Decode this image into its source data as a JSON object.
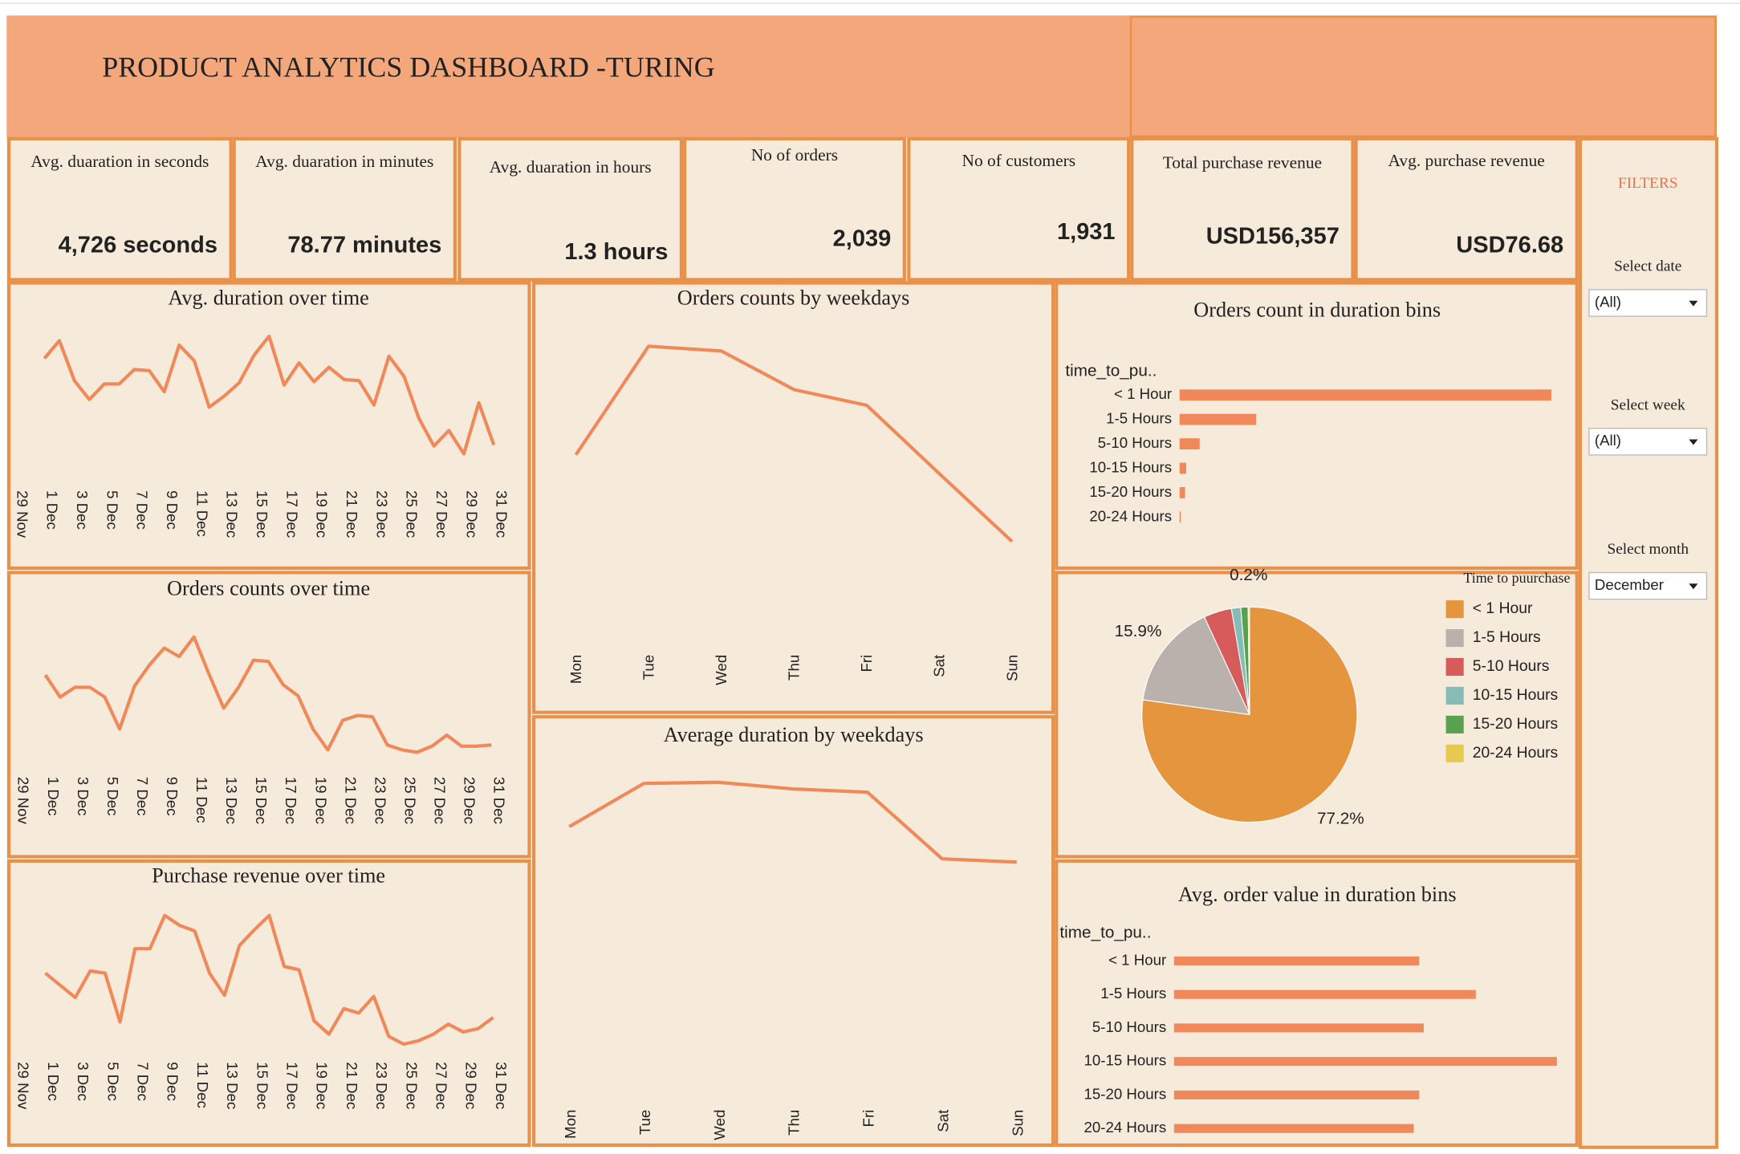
{
  "header": {
    "title": "PRODUCT ANALYTICS DASHBOARD -TURING"
  },
  "kpis": [
    {
      "label": "Avg. duaration in seconds",
      "value": "4,726 seconds"
    },
    {
      "label": "Avg. duaration in minutes",
      "value": "78.77 minutes"
    },
    {
      "label": "Avg. duaration in hours",
      "value": "1.3 hours"
    },
    {
      "label": "No of orders",
      "value": "2,039"
    },
    {
      "label": "No of customers",
      "value": "1,931"
    },
    {
      "label": "Total purchase revenue",
      "value": "USD156,357"
    },
    {
      "label": "Avg. purchase revenue",
      "value": "USD76.68"
    }
  ],
  "filters": {
    "title": "FILTERS",
    "items": [
      {
        "label": "Select date",
        "value": "(All)"
      },
      {
        "label": "Select week",
        "value": "(All)"
      },
      {
        "label": "Select month",
        "value": "December"
      }
    ]
  },
  "chart_data": [
    {
      "type": "line",
      "title": "Avg. duration over time",
      "color": "#f0885a",
      "categories": [
        "29 Nov",
        null,
        "1 Dec",
        null,
        "3 Dec",
        null,
        "5 Dec",
        null,
        "7 Dec",
        null,
        "9 Dec",
        null,
        "11 Dec",
        null,
        "13 Dec",
        null,
        "15 Dec",
        null,
        "17 Dec",
        null,
        "19 Dec",
        null,
        "21 Dec",
        null,
        "23 Dec",
        null,
        "25 Dec",
        null,
        "27 Dec",
        null,
        "29 Dec",
        null,
        "31 Dec"
      ],
      "values": [
        null,
        null,
        5586,
        6194,
        4826,
        4180,
        4712,
        4712,
        5206,
        5168,
        4446,
        6042,
        5510,
        3914,
        4294,
        4750,
        5700,
        6346,
        4674,
        5434,
        4788,
        5282,
        4864,
        4826,
        3990,
        5662,
        4978,
        3534,
        2584,
        3116,
        2318,
        4066,
        2622
      ]
    },
    {
      "type": "line",
      "title": "Orders counts over time",
      "color": "#f0885a",
      "categories": [
        "29 Nov",
        null,
        "1 Dec",
        null,
        "3 Dec",
        null,
        "5 Dec",
        null,
        "7 Dec",
        null,
        "9 Dec",
        null,
        "11 Dec",
        null,
        "13 Dec",
        null,
        "15 Dec",
        null,
        "17 Dec",
        null,
        "19 Dec",
        null,
        "21 Dec",
        null,
        "23 Dec",
        null,
        "25 Dec",
        null,
        "27 Dec",
        null,
        "29 Dec",
        null,
        "31 Dec"
      ],
      "values": [
        null,
        null,
        87,
        69,
        77,
        77,
        69,
        43,
        78,
        95,
        109,
        102,
        118,
        88,
        60,
        77,
        99,
        98,
        79,
        70,
        43,
        26,
        50,
        54,
        53,
        30,
        26,
        24,
        29,
        38,
        29,
        29,
        30
      ]
    },
    {
      "type": "line",
      "title": "Purchase revenue over time",
      "color": "#f0885a",
      "categories": [
        "29 Nov",
        null,
        "1 Dec",
        null,
        "3 Dec",
        null,
        "5 Dec",
        null,
        "7 Dec",
        null,
        "9 Dec",
        null,
        "11 Dec",
        null,
        "13 Dec",
        null,
        "15 Dec",
        null,
        "17 Dec",
        null,
        "19 Dec",
        null,
        "21 Dec",
        null,
        "23 Dec",
        null,
        "25 Dec",
        null,
        "27 Dec",
        null,
        "29 Dec",
        null,
        "31 Dec"
      ],
      "values": [
        null,
        null,
        7470,
        6480,
        5490,
        7650,
        7470,
        3510,
        9450,
        9450,
        12150,
        11340,
        10890,
        7470,
        5670,
        9720,
        10980,
        12150,
        8010,
        7740,
        3600,
        2520,
        4590,
        4230,
        5580,
        2340,
        1710,
        1980,
        2520,
        3330,
        2700,
        2970,
        3870
      ]
    },
    {
      "type": "line",
      "title": "Orders counts by weekdays",
      "color": "#f0885a",
      "categories": [
        "Mon",
        "Tue",
        "Wed",
        "Thu",
        "Fri",
        "Sat",
        "Sun"
      ],
      "values": [
        245,
        405,
        398,
        341,
        318,
        217,
        117
      ]
    },
    {
      "type": "line",
      "title": "Average duration by weekdays",
      "color": "#f0885a",
      "categories": [
        "Mon",
        "Tue",
        "Wed",
        "Thu",
        "Fri",
        "Sat",
        "Sun"
      ],
      "values": [
        4650,
        5820,
        5850,
        5670,
        5580,
        3780,
        3690
      ]
    },
    {
      "type": "bar",
      "title": "Orders count in duration bins",
      "y_label": "time_to_pu..",
      "color": "#f0885a",
      "categories": [
        "< 1 Hour",
        "1-5 Hours",
        "5-10 Hours",
        "10-15 Hours",
        "15-20 Hours",
        "20-24 Hours"
      ],
      "values": [
        1574,
        324,
        85,
        28,
        23,
        5
      ]
    },
    {
      "type": "pie",
      "legend_title": "Time to puurchase",
      "categories": [
        "< 1 Hour",
        "1-5 Hours",
        "5-10 Hours",
        "10-15 Hours",
        "15-20 Hours",
        "20-24 Hours"
      ],
      "values": [
        77.2,
        15.9,
        4.2,
        1.4,
        1.1,
        0.2
      ],
      "value_labels": [
        "77.2%",
        "15.9%",
        null,
        null,
        null,
        "0.2%"
      ],
      "colors": [
        "#e6953f",
        "#bab0ac",
        "#d65c5c",
        "#86bcb6",
        "#59a14f",
        "#e6c94f"
      ]
    },
    {
      "type": "bar",
      "title": "Avg. order value in duration bins",
      "y_label": "time_to_pu..",
      "color": "#f0885a",
      "categories": [
        "< 1 Hour",
        "1-5 Hours",
        "5-10 Hours",
        "10-15 Hours",
        "15-20 Hours",
        "20-24 Hours"
      ],
      "values": [
        76.2,
        93.8,
        77.6,
        119.0,
        76.2,
        74.5
      ]
    }
  ]
}
